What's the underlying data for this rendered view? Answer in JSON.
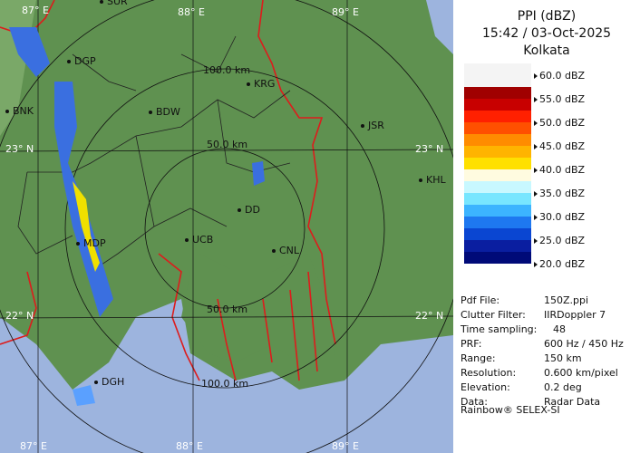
{
  "panel": {
    "title": "PPI (dBZ)",
    "time": "15:42 / 03-Oct-2025",
    "site": "Kolkata",
    "legend": [
      "60.0 dBZ",
      "55.0 dBZ",
      "50.0 dBZ",
      "45.0 dBZ",
      "40.0 dBZ",
      "35.0 dBZ",
      "30.0 dBZ",
      "25.0 dBZ",
      "20.0 dBZ"
    ],
    "info": [
      {
        "label": "Pdf File:",
        "value": "150Z.ppi"
      },
      {
        "label": "Clutter Filter:",
        "value": "IIRDoppler 7"
      },
      {
        "label": "Time sampling:",
        "value": "48"
      },
      {
        "label": "PRF:",
        "value": "600 Hz / 450 Hz"
      },
      {
        "label": "Range:",
        "value": "150 km"
      },
      {
        "label": "Resolution:",
        "value": "0.600 km/pixel"
      },
      {
        "label": "Elevation:",
        "value": "0.2 deg"
      },
      {
        "label": "Data:",
        "value": "Radar Data"
      }
    ],
    "footer": "Rainbow® SELEX-SI"
  },
  "map": {
    "grid_labels": [
      "87° E",
      "88° E",
      "89° E",
      "23° N",
      "23° N",
      "22° N",
      "22° N",
      "87° E",
      "88° E",
      "89° E"
    ],
    "range_labels": [
      "100.0 km",
      "50.0 km",
      "50.0 km",
      "100.0 km"
    ],
    "places": [
      "SUR",
      "DGP",
      "BNK",
      "BDW",
      "KRG",
      "JSR",
      "KHL",
      "DD",
      "UCB",
      "CNL",
      "MDP",
      "DGH"
    ]
  }
}
